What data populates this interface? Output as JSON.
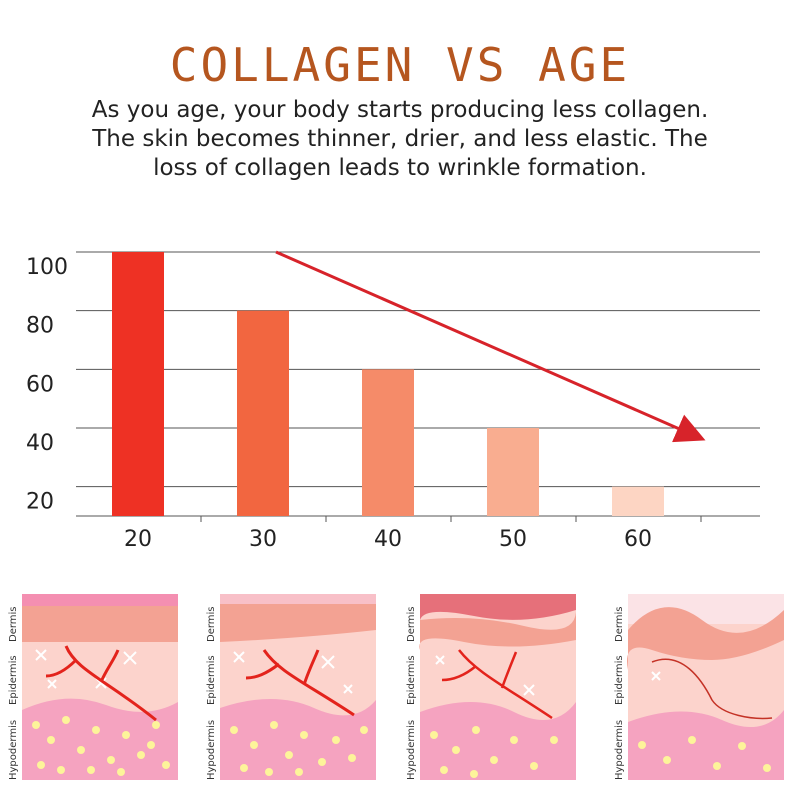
{
  "header": {
    "title": "COLLAGEN VS AGE",
    "subtitle_lines": [
      "As you age, your body starts producing less collagen.",
      "The skin becomes thinner, drier, and less elastic. The",
      "loss of collagen leads to wrinkle formation."
    ]
  },
  "chart_data": {
    "type": "bar",
    "title": "",
    "xlabel": "",
    "ylabel": "",
    "categories": [
      "20",
      "30",
      "40",
      "50",
      "60"
    ],
    "values": [
      100,
      80,
      60,
      40,
      20
    ],
    "yticks": [
      "100",
      "80",
      "60",
      "40",
      "20"
    ],
    "ylim": [
      10,
      100
    ],
    "grid": true,
    "bar_colors": [
      "#ee3124",
      "#f26640",
      "#f58b69",
      "#f9ad90",
      "#fdd5c3"
    ],
    "trend_arrow_color": "#d7232a"
  },
  "skin_panels": [
    {
      "labels": [
        "Dermis",
        "Epidermis",
        "Hypodermis"
      ]
    },
    {
      "labels": [
        "Dermis",
        "Epidermis",
        "Hypodermis"
      ]
    },
    {
      "labels": [
        "Dermis",
        "Epidermis",
        "Hypodermis"
      ]
    },
    {
      "labels": [
        "Dermis",
        "Epidermis",
        "Hypodermis"
      ]
    }
  ],
  "colors": {
    "title": "#b5561f",
    "top_layer": "#f48fb1",
    "dermis": "#f3a293",
    "epidermis": "#fcd3cc",
    "hypodermis": "#f5a3c0",
    "fat_cells": "#fdf49a",
    "vessels": "#e3231c"
  }
}
